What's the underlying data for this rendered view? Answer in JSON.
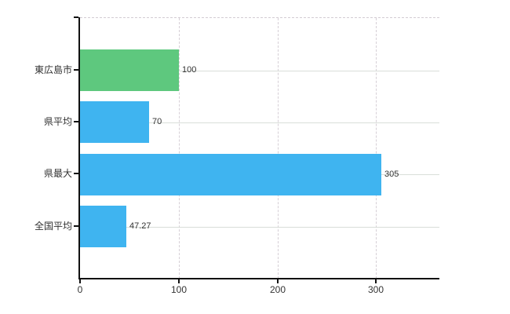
{
  "chart_data": {
    "type": "bar",
    "orientation": "horizontal",
    "title": "",
    "xlabel": "",
    "ylabel": "",
    "categories": [
      "東広島市",
      "県平均",
      "県最大",
      "全国平均"
    ],
    "values": [
      100,
      70,
      305,
      47.27
    ],
    "value_labels": [
      "100",
      "70",
      "305",
      "47.27"
    ],
    "bar_colors": [
      "#5ec87e",
      "#3fb4f0",
      "#3fb4f0",
      "#3fb4f0"
    ],
    "xlim": [
      0,
      364
    ],
    "x_ticks": [
      0,
      100,
      200,
      300
    ],
    "x_tick_labels": [
      "0",
      "100",
      "200",
      "300"
    ],
    "legend": "none",
    "grid": {
      "vertical_style": "dashed",
      "horizontal_style": "solid",
      "grid_on": true
    }
  },
  "colors": {
    "background": "#ffffff",
    "axis": "#111111",
    "grid_horizontal": "#d9ded9",
    "grid_vertical": "#d6cfd6",
    "text": "#333333",
    "bar_green": "#5ec87e",
    "bar_blue": "#3fb4f0"
  }
}
